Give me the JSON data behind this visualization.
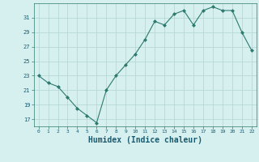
{
  "x": [
    0,
    1,
    2,
    3,
    4,
    5,
    6,
    7,
    8,
    9,
    10,
    11,
    12,
    13,
    14,
    15,
    16,
    17,
    18,
    19,
    20,
    21,
    22
  ],
  "y": [
    23,
    22,
    21.5,
    20,
    18.5,
    17.5,
    16.5,
    21,
    23,
    24.5,
    26,
    28,
    30.5,
    30,
    31.5,
    32,
    30,
    32,
    32.5,
    32,
    32,
    29,
    26.5
  ],
  "line_color": "#2d7a6e",
  "marker_color": "#2d7a6e",
  "bg_color": "#d6f0f0",
  "grid_color": "#b8d8d8",
  "xlabel": "Humidex (Indice chaleur)",
  "xlabel_fontsize": 7,
  "xlabel_color": "#1a5a6e",
  "yticks": [
    17,
    19,
    21,
    23,
    25,
    27,
    29,
    31
  ],
  "xticks": [
    0,
    1,
    2,
    3,
    4,
    5,
    6,
    7,
    8,
    9,
    10,
    11,
    12,
    13,
    14,
    15,
    16,
    17,
    18,
    19,
    20,
    21,
    22
  ],
  "ylim": [
    16,
    33
  ],
  "xlim": [
    -0.5,
    22.5
  ]
}
